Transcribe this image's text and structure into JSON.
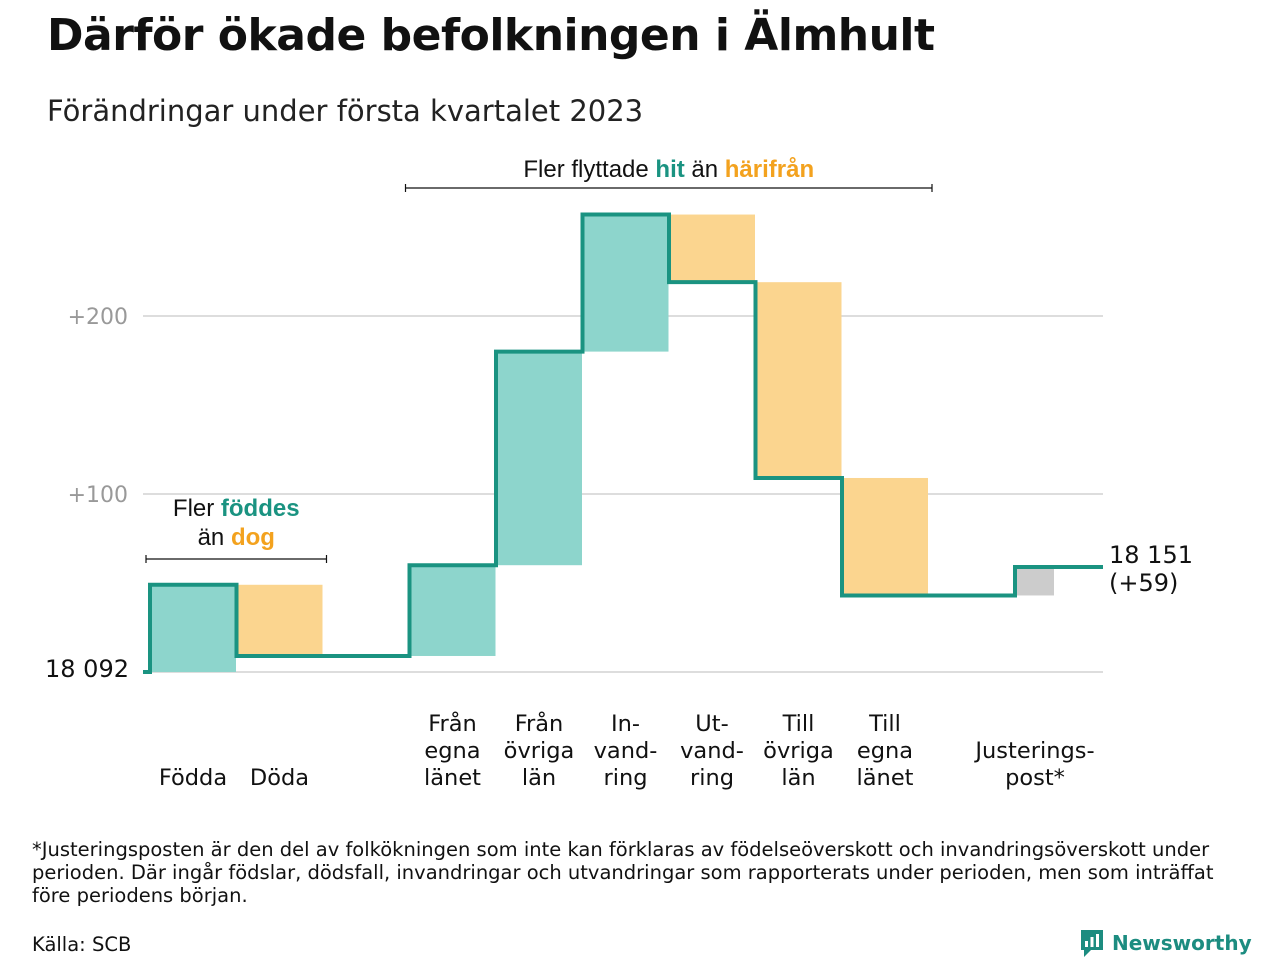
{
  "title": "Därför ökade befolkningen i Älmhult",
  "subtitle": "Förändringar under första kvartalet 2023",
  "colors": {
    "increase": "#8dd5cc",
    "decrease": "#fbd58f",
    "adjustment": "#cccccc",
    "line": "#1a9381",
    "highlight_teal": "#1a9381",
    "highlight_orange": "#f3a21e",
    "grid": "#dddddd",
    "tick": "#999999"
  },
  "chart_data": {
    "type": "bar",
    "subtype": "waterfall",
    "start_value": 18092,
    "start_label": "18 092",
    "end_value": 18151,
    "end_label": [
      "18 151",
      "(+59)"
    ],
    "y_ticks": [
      {
        "value": 200,
        "label": "+200"
      },
      {
        "value": 100,
        "label": "+100"
      }
    ],
    "ylim": [
      0,
      270
    ],
    "grid": true,
    "steps": [
      {
        "name": "Födda",
        "label": [
          "Födda"
        ],
        "delta": 49,
        "kind": "increase"
      },
      {
        "name": "Döda",
        "label": [
          "Döda"
        ],
        "delta": -40,
        "kind": "decrease"
      },
      {
        "name": "Från egna länet",
        "label": [
          "Från",
          "egna",
          "länet"
        ],
        "delta": 51,
        "kind": "increase",
        "gap_before": true
      },
      {
        "name": "Från övriga län",
        "label": [
          "Från",
          "övriga",
          "län"
        ],
        "delta": 120,
        "kind": "increase"
      },
      {
        "name": "Invandring",
        "label": [
          "In-",
          "vand-",
          "ring"
        ],
        "delta": 77,
        "kind": "increase"
      },
      {
        "name": "Utvandring",
        "label": [
          "Ut-",
          "vand-",
          "ring"
        ],
        "delta": -38,
        "kind": "decrease"
      },
      {
        "name": "Till övriga län",
        "label": [
          "Till",
          "övriga",
          "län"
        ],
        "delta": -110,
        "kind": "decrease"
      },
      {
        "name": "Till egna länet",
        "label": [
          "Till",
          "egna",
          "länet"
        ],
        "delta": -66,
        "kind": "decrease"
      },
      {
        "name": "Justeringspost",
        "label": [
          "Justerings-",
          "post*"
        ],
        "delta": 16,
        "kind": "adjustment",
        "gap_before": true
      }
    ],
    "annotations": [
      {
        "id": "birth",
        "spans": [
          "Födda",
          "Döda"
        ],
        "parts": [
          [
            {
              "text": "Fler ",
              "style": "plain"
            },
            {
              "text": "föddes",
              "style": "teal"
            }
          ],
          [
            {
              "text": "än ",
              "style": "plain"
            },
            {
              "text": "dog",
              "style": "orange"
            }
          ]
        ]
      },
      {
        "id": "migration",
        "spans": [
          "Från egna länet",
          "Till egna länet"
        ],
        "parts": [
          [
            {
              "text": "Fler flyttade ",
              "style": "plain"
            },
            {
              "text": "hit",
              "style": "teal"
            },
            {
              "text": " än ",
              "style": "plain"
            },
            {
              "text": "härifrån",
              "style": "orange"
            }
          ]
        ]
      }
    ]
  },
  "footnote": "*Justeringsposten är den del av folkökningen som inte kan förklaras av födelseöverskott och invandringsöverskott under perioden. Där ingår födslar, dödsfall, invandringar och utvandringar som rapporterats under perioden, men som inträffat före periodens början.",
  "source": "Källa: SCB",
  "brand": "Newsworthy"
}
